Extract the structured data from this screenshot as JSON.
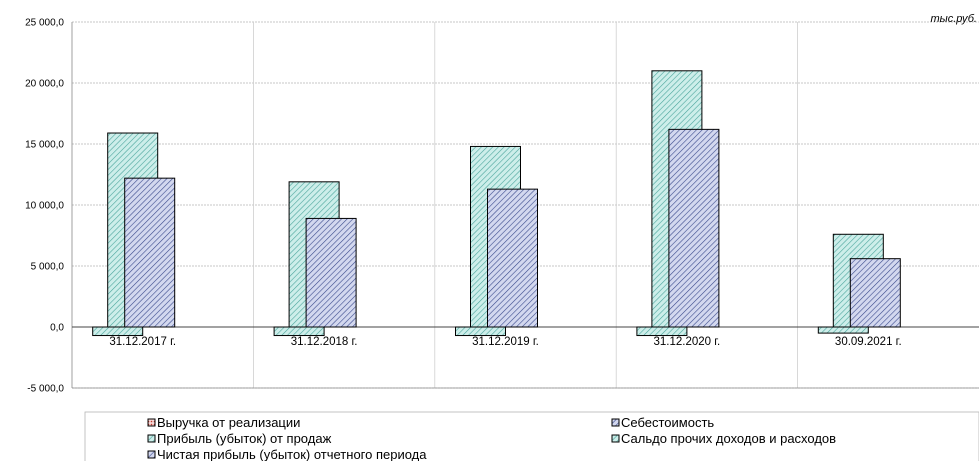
{
  "chart_data": {
    "type": "bar",
    "unit_label": "тыс.руб.",
    "categories": [
      "31.12.2017 г.",
      "31.12.2018 г.",
      "31.12.2019 г.",
      "31.12.2020 г.",
      "30.09.2021 г."
    ],
    "ylim": [
      -5000,
      25000
    ],
    "y_ticks": [
      25000,
      20000,
      15000,
      10000,
      5000,
      0,
      -5000
    ],
    "y_tick_labels": [
      "25 000,0",
      "20 000,0",
      "15 000,0",
      "10 000,0",
      "5 000,0",
      "0,0",
      "-5 000,0"
    ],
    "grid": true,
    "legend_position": "bottom",
    "series": [
      {
        "name": "Выручка от реализации",
        "values": [
          0,
          0,
          0,
          0,
          0
        ],
        "color": "#e06666",
        "pattern": "dots"
      },
      {
        "name": "Себестоимость",
        "values": [
          0,
          0,
          0,
          0,
          0
        ],
        "color": "#9aa4d8",
        "pattern": "hatch"
      },
      {
        "name": "Прибыль (убыток) от продаж",
        "values": [
          -700,
          -700,
          -700,
          -700,
          -500
        ],
        "color": "#9ad8d2",
        "pattern": "hatch"
      },
      {
        "name": "Сальдо прочих доходов и расходов",
        "values": [
          15900,
          11900,
          14800,
          21000,
          7600
        ],
        "color": "#9ad8d2",
        "pattern": "hatch"
      },
      {
        "name": "Чистая прибыль (убыток) отчетного периода",
        "values": [
          12200,
          8900,
          11300,
          16200,
          5600
        ],
        "color": "#9aa4d8",
        "pattern": "hatch"
      }
    ]
  }
}
